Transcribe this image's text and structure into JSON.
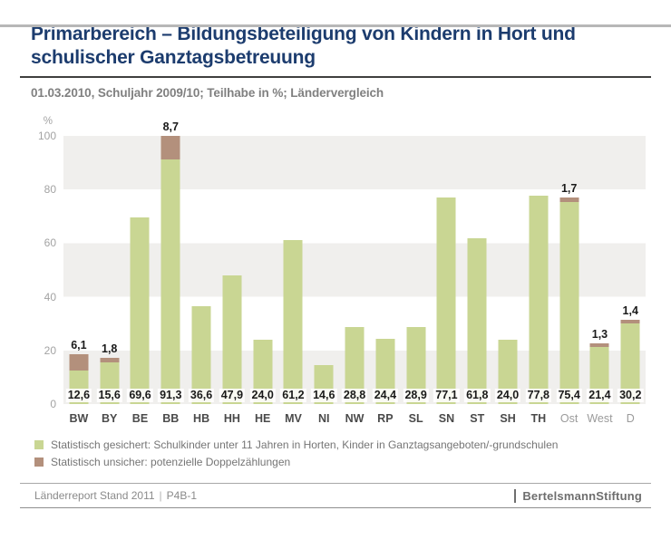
{
  "page": {
    "title": "Primarbereich – Bildungsbeteiligung von Kindern in Hort und schulischer Ganztagsbetreuung",
    "subtitle": "01.03.2010, Schuljahr 2009/10; Teilhabe in %; Ländervergleich"
  },
  "chart_data": {
    "type": "bar",
    "stacked": true,
    "title": "Primarbereich – Bildungsbeteiligung von Kindern in Hort und schulischer Ganztagsbetreuung",
    "subtitle": "01.03.2010, Schuljahr 2009/10; Teilhabe in %; Ländervergleich",
    "axis_unit_label": "%",
    "ylim": [
      0,
      100
    ],
    "yticks": [
      0,
      20,
      40,
      60,
      80,
      100
    ],
    "grid_bands": "alternating gray bands 0-20, 40-60, 80-100",
    "legend_position": "bottom",
    "categories": [
      "BW",
      "BY",
      "BE",
      "BB",
      "HB",
      "HH",
      "HE",
      "MV",
      "NI",
      "NW",
      "RP",
      "SL",
      "SN",
      "ST",
      "SH",
      "TH",
      "Ost",
      "West",
      "D"
    ],
    "muted_categories": [
      "Ost",
      "West",
      "D"
    ],
    "series": [
      {
        "name": "Statistisch gesichert: Schulkinder unter 11 Jahren in Horten, Kinder in Ganztagsangeboten/-grundschulen",
        "color": "#c9d693",
        "values": [
          12.6,
          15.6,
          69.6,
          91.3,
          36.6,
          47.9,
          24.0,
          61.2,
          14.6,
          28.8,
          24.4,
          28.9,
          77.1,
          61.8,
          24.0,
          77.8,
          75.4,
          21.4,
          30.2
        ]
      },
      {
        "name": "Statistisch unsicher: potenzielle Doppelzählungen",
        "color": "#b3907c",
        "values": [
          6.1,
          1.8,
          null,
          8.7,
          null,
          null,
          null,
          null,
          null,
          null,
          null,
          null,
          null,
          null,
          null,
          null,
          1.7,
          1.3,
          1.4
        ]
      }
    ],
    "value_labels": [
      "12,6",
      "15,6",
      "69,6",
      "91,3",
      "36,6",
      "47,9",
      "24,0",
      "61,2",
      "14,6",
      "28,8",
      "24,4",
      "28,9",
      "77,1",
      "61,8",
      "24,0",
      "77,8",
      "75,4",
      "21,4",
      "30,2"
    ],
    "cap_labels": [
      "6,1",
      "1,8",
      null,
      "8,7",
      null,
      null,
      null,
      null,
      null,
      null,
      null,
      null,
      null,
      null,
      null,
      null,
      "1,7",
      "1,3",
      "1,4"
    ]
  },
  "legend": {
    "items": [
      {
        "label": "Statistisch gesichert: Schulkinder unter 11 Jahren in Horten, Kinder in Ganztagsangeboten/-grundschulen",
        "color": "#c9d693"
      },
      {
        "label": "Statistisch unsicher: potenzielle Doppelzählungen",
        "color": "#b3907c"
      }
    ]
  },
  "footer": {
    "report": "Länderreport Stand 2011",
    "code": "P4B-1",
    "separator": "|",
    "brand_first": "Bertelsmann",
    "brand_second": "Stiftung"
  }
}
